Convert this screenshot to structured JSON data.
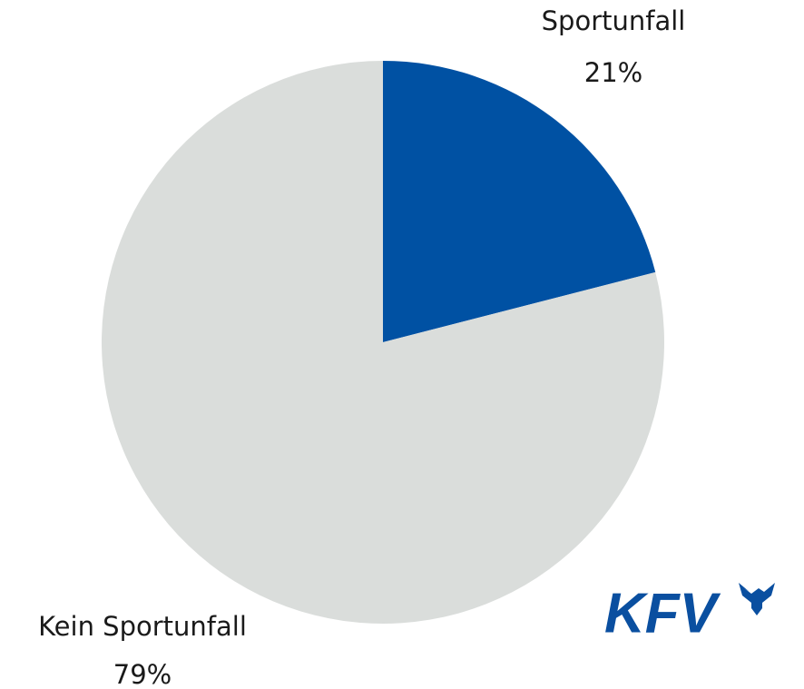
{
  "chart_data": {
    "type": "pie",
    "categories": [
      "Sportunfall",
      "Kein Sportunfall"
    ],
    "values": [
      21,
      79
    ],
    "value_labels": [
      "21%",
      "79%"
    ],
    "colors": [
      "#0051a3",
      "#dadddb"
    ],
    "logo": "KFV"
  }
}
